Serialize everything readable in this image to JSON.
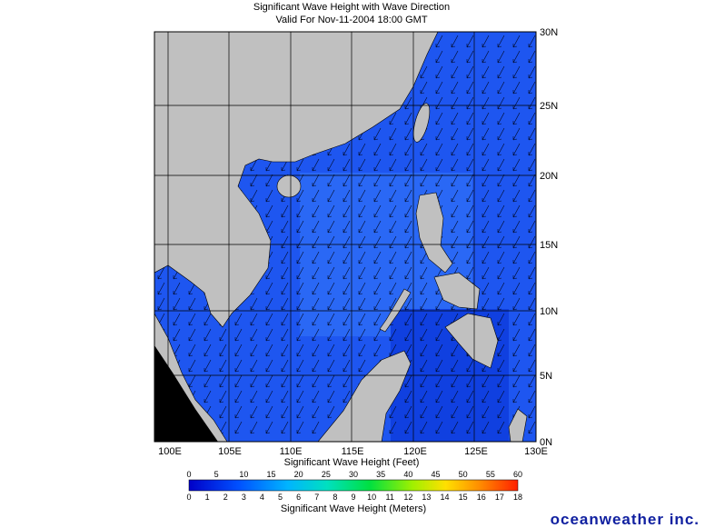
{
  "header": {
    "title": "Significant Wave Height with Wave Direction",
    "subtitle": "Valid For Nov-11-2004 18:00 GMT"
  },
  "map": {
    "longitude_labels": [
      "100E",
      "105E",
      "110E",
      "115E",
      "120E",
      "125E",
      "130E"
    ],
    "latitude_labels": [
      "30N",
      "25N",
      "20N",
      "15N",
      "10N",
      "5N",
      "0N"
    ]
  },
  "legend": {
    "feet_title": "Significant Wave Height (Feet)",
    "feet_ticks": [
      0,
      5,
      10,
      15,
      20,
      25,
      30,
      35,
      40,
      45,
      50,
      55,
      60
    ],
    "meters_ticks": [
      0,
      1,
      2,
      3,
      4,
      5,
      6,
      7,
      8,
      9,
      10,
      11,
      12,
      13,
      14,
      15,
      16,
      17,
      18
    ],
    "meters_title": "Significant Wave Height (Meters)"
  },
  "brand": "oceanweather inc."
}
